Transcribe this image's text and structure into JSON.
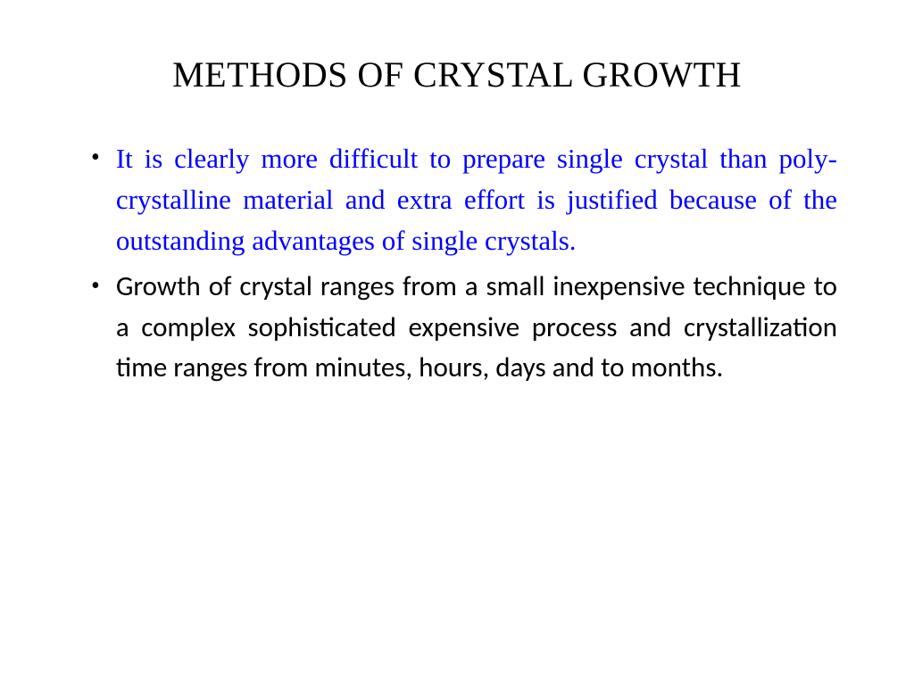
{
  "title": "METHODS OF CRYSTAL GROWTH",
  "bullets": [
    {
      "dot": "•",
      "text": "It is clearly more difficult to prepare single crystal than poly-crystalline material and extra effort is justified because of the outstanding advantages of single crystals.",
      "text_color": "#0000ff",
      "font_family": "serif",
      "font_size": 31
    },
    {
      "dot": "•",
      "text": " Growth of crystal ranges from a small inexpensive technique to a complex sophisticated expensive process and crystallization time ranges from minutes, hours, days and to months.",
      "text_color": "#000000",
      "font_family": "sans-serif",
      "font_size": 31
    }
  ],
  "styling": {
    "background_color": "#ffffff",
    "title_color": "#000000",
    "title_fontsize": 40,
    "body_fontsize": 31,
    "bullet_dot_color": "#000000",
    "slide_width": 1024,
    "slide_height": 768
  }
}
